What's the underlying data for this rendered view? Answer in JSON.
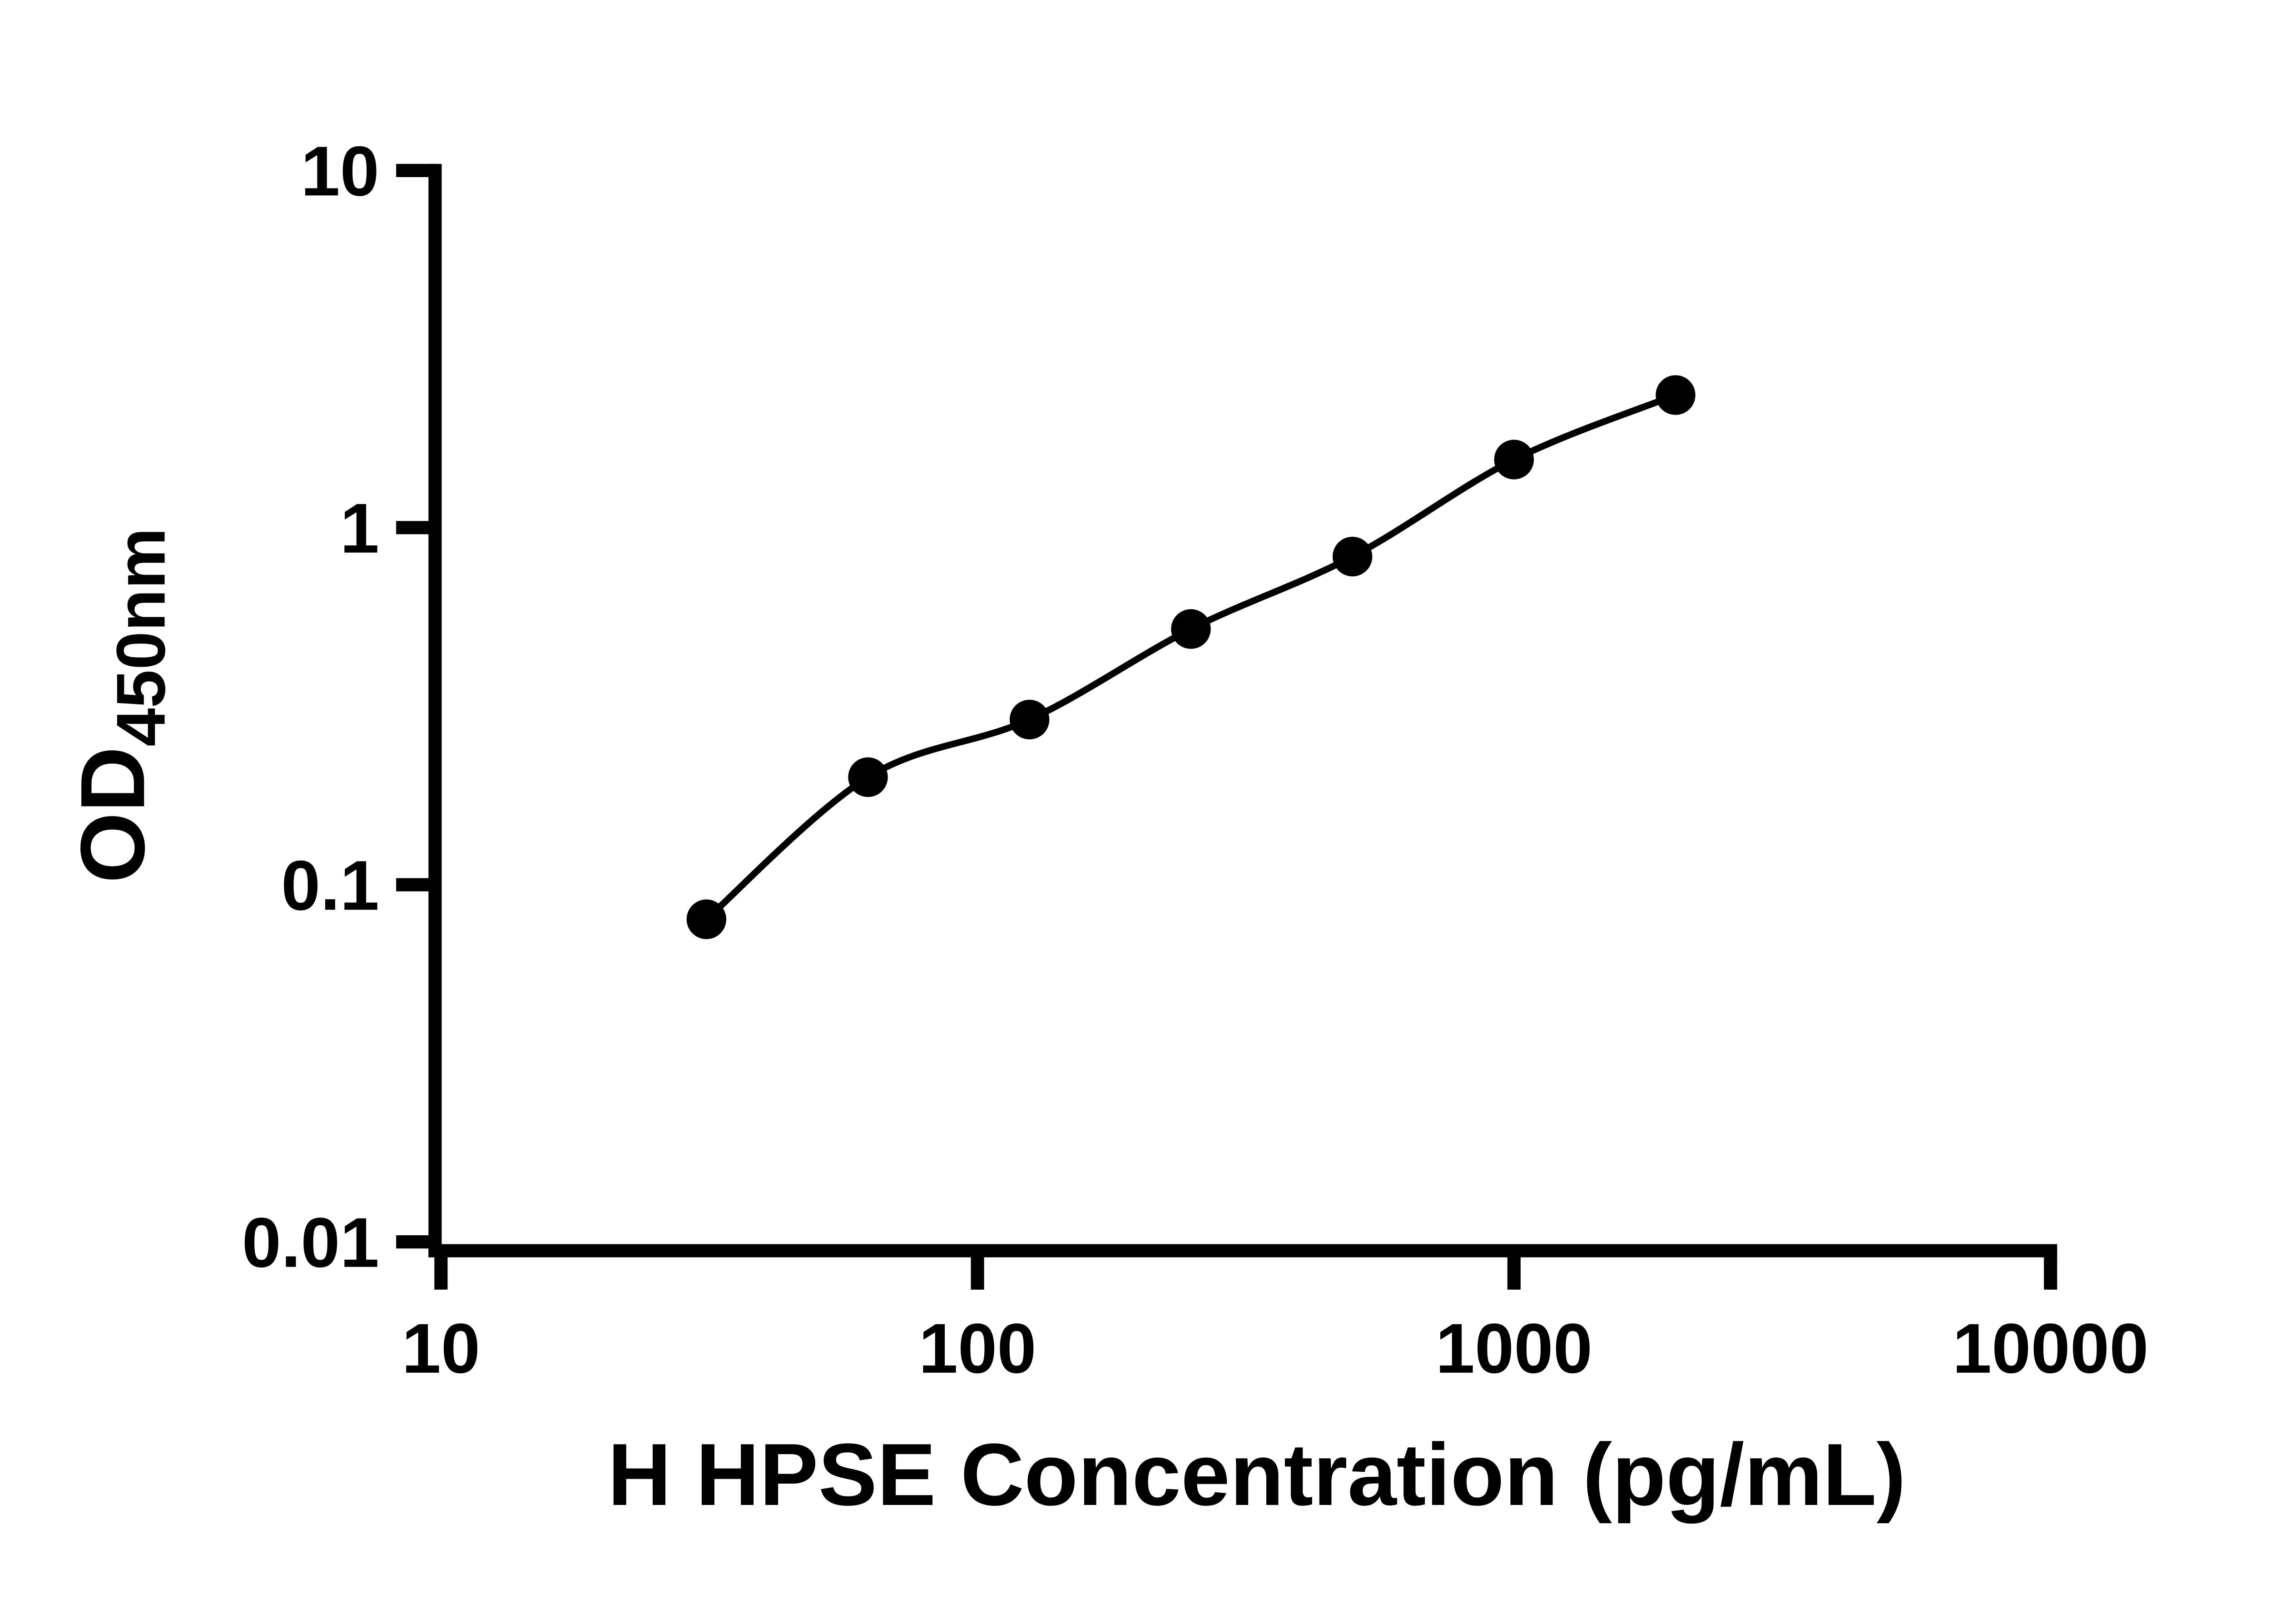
{
  "chart_data": {
    "type": "scatter",
    "title": "",
    "xlabel": "H HPSE Concentration (pg/mL)",
    "ylabel_main": "OD",
    "ylabel_subscript": "450nm",
    "x_scale": "log10",
    "y_scale": "log10",
    "xlim": [
      10,
      10000
    ],
    "ylim": [
      0.01,
      10
    ],
    "x_tick_values": [
      10,
      100,
      1000,
      10000
    ],
    "x_tick_labels": [
      "10",
      "100",
      "1000",
      "10000"
    ],
    "y_tick_values": [
      0.01,
      0.1,
      1,
      10
    ],
    "y_tick_labels": [
      "0.01",
      "0.1",
      "1",
      "10"
    ],
    "grid": false,
    "legend": "none",
    "marker": "filled-circle",
    "curve": "smooth fit line through points",
    "x": [
      31.25,
      62.5,
      125,
      250,
      500,
      1000,
      2000
    ],
    "y": [
      0.08,
      0.2,
      0.29,
      0.52,
      0.83,
      1.55,
      2.35
    ]
  },
  "colors": {
    "background": "#ffffff",
    "axis": "#000000",
    "text": "#000000",
    "marker": "#000000",
    "curve": "#000000"
  }
}
